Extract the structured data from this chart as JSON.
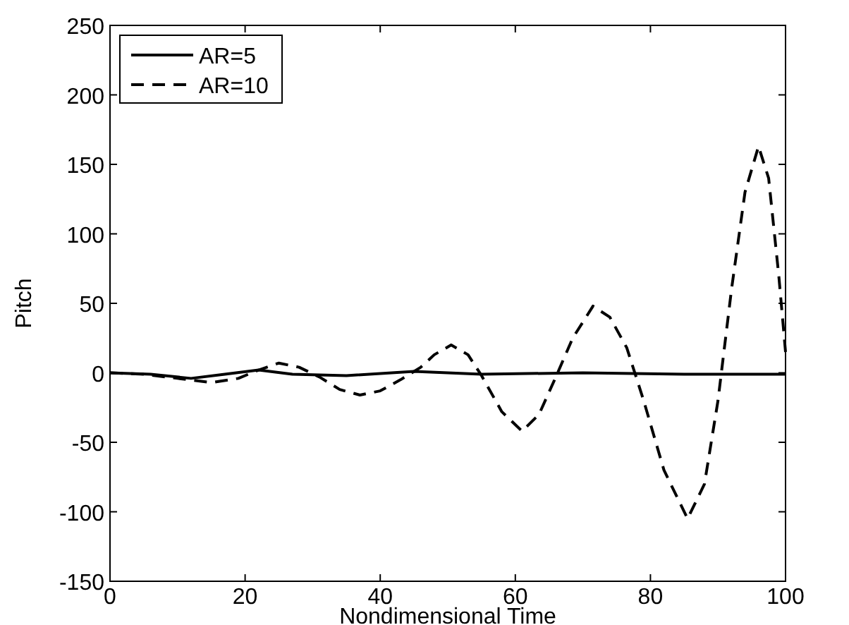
{
  "chart_data": {
    "type": "line",
    "xlabel": "Nondimensional Time",
    "ylabel": "Pitch",
    "xlim": [
      0,
      100
    ],
    "ylim": [
      -150,
      250
    ],
    "xticks": [
      0,
      20,
      40,
      60,
      80,
      100
    ],
    "yticks": [
      -150,
      -100,
      -50,
      0,
      50,
      100,
      150,
      200,
      250
    ],
    "grid": false,
    "legend": "top left",
    "series": [
      {
        "name": "AR=5",
        "color": "#000000",
        "line_style": "solid",
        "x": [
          0,
          6,
          12,
          17,
          22,
          27,
          35,
          45,
          55,
          70,
          85,
          100
        ],
        "values": [
          0,
          -1,
          -4,
          -1,
          2,
          -1,
          -2,
          1,
          -1,
          0,
          -1,
          -1
        ]
      },
      {
        "name": "AR=10",
        "color": "#000000",
        "line_style": "dashed",
        "x": [
          0,
          5,
          10,
          15,
          19,
          22,
          25,
          28,
          31,
          34,
          37,
          40,
          43,
          46,
          48,
          50.5,
          53,
          55,
          58,
          61,
          63.5,
          66,
          68.5,
          71.5,
          74,
          76.5,
          79,
          82,
          85.5,
          88,
          90,
          92,
          94,
          96,
          97.5,
          99,
          100
        ],
        "values": [
          0,
          -1,
          -4,
          -7,
          -4,
          2,
          7,
          4,
          -3,
          -12,
          -16,
          -13,
          -5,
          4,
          13,
          20,
          13,
          -2,
          -28,
          -42,
          -30,
          -3,
          25,
          48,
          40,
          18,
          -20,
          -70,
          -105,
          -80,
          -20,
          60,
          130,
          163,
          140,
          70,
          15
        ]
      }
    ]
  }
}
